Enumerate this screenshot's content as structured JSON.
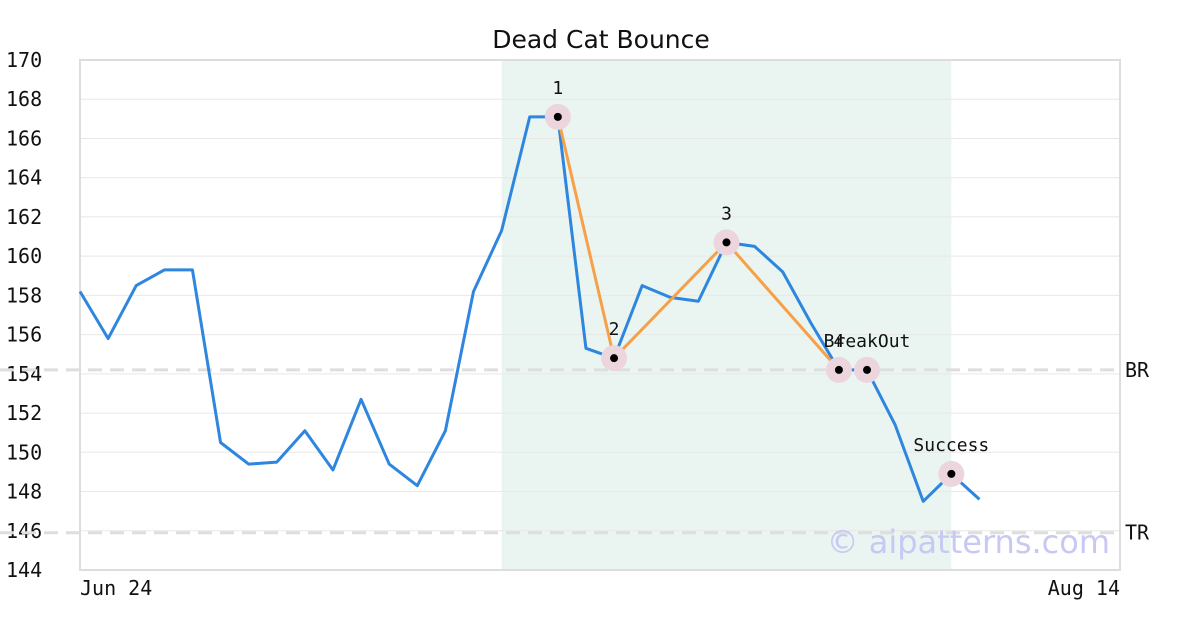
{
  "colors": {
    "price_line": "#2e86de",
    "pattern_line": "#f7a04a",
    "highlight_band": "#eaf5f1",
    "marker_halo": "#ecd5dd",
    "grid": "#e8e8e8",
    "frame": "#dddddd",
    "level_line": "#dedede",
    "watermark": "#c8c8f5"
  },
  "watermark": "© aipatterns.com",
  "chart_data": {
    "type": "line",
    "title": "Dead Cat Bounce",
    "xlabel": "",
    "ylabel": "",
    "ylim": [
      144,
      170
    ],
    "yticks": [
      144,
      146,
      148,
      150,
      152,
      154,
      156,
      158,
      160,
      162,
      164,
      166,
      168,
      170
    ],
    "xlim": [
      0,
      37
    ],
    "x_tick_labels": [
      {
        "x": 0,
        "label": "Jun 24"
      },
      {
        "x": 37,
        "label": "Aug 14"
      }
    ],
    "grid": "horizontal",
    "series": [
      {
        "values": [
          158.2,
          155.8,
          158.5,
          159.3,
          159.3,
          150.5,
          149.4,
          149.5,
          151.1,
          149.1,
          152.7,
          149.4,
          148.3,
          151.1,
          158.2,
          161.3,
          167.1,
          167.1,
          155.3,
          154.8,
          158.5,
          157.9,
          157.7,
          160.7,
          160.5,
          159.2,
          156.6,
          154.2,
          154.2,
          151.4,
          147.5,
          148.9,
          147.6
        ]
      }
    ],
    "pattern_points": [
      {
        "x": 17,
        "y": 167.1,
        "label": "1"
      },
      {
        "x": 19,
        "y": 154.8,
        "label": "2"
      },
      {
        "x": 23,
        "y": 160.7,
        "label": "3"
      },
      {
        "x": 27,
        "y": 154.2,
        "label": "4"
      },
      {
        "x": 28,
        "y": 154.2,
        "label": "BreakOut"
      },
      {
        "x": 31,
        "y": 148.9,
        "label": "Success"
      }
    ],
    "pattern_line_points": [
      17,
      19,
      23,
      27
    ],
    "highlight_range": [
      15,
      31
    ],
    "levels": [
      {
        "y": 154.2,
        "label": "BR"
      },
      {
        "y": 145.9,
        "label": "TR"
      }
    ]
  }
}
